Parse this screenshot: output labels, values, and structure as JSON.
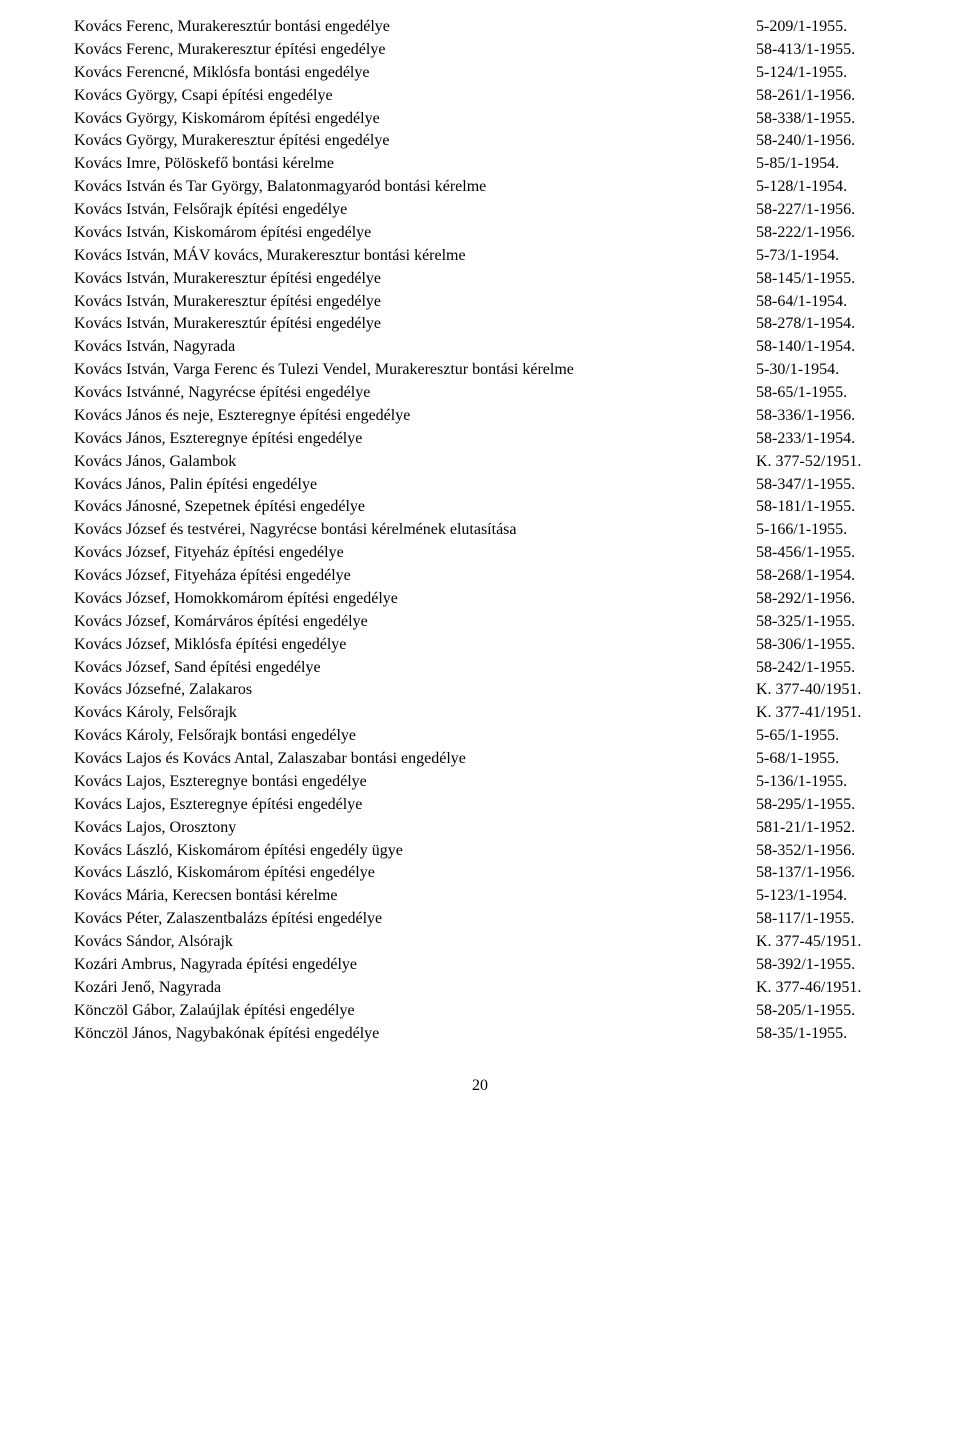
{
  "page_number": "20",
  "entries": [
    {
      "text": "Kovács Ferenc, Murakeresztúr bontási engedélye",
      "code": "5-209/1-1955."
    },
    {
      "text": "Kovács Ferenc, Murakeresztur építési engedélye",
      "code": "58-413/1-1955."
    },
    {
      "text": "Kovács Ferencné, Miklósfa bontási engedélye",
      "code": "5-124/1-1955."
    },
    {
      "text": "Kovács György, Csapi építési engedélye",
      "code": "58-261/1-1956."
    },
    {
      "text": "Kovács György, Kiskomárom építési engedélye",
      "code": "58-338/1-1955."
    },
    {
      "text": "Kovács György, Murakeresztur építési engedélye",
      "code": "58-240/1-1956."
    },
    {
      "text": "Kovács Imre, Pölöskefő bontási kérelme",
      "code": "5-85/1-1954."
    },
    {
      "text": "Kovács István és Tar György, Balatonmagyaród bontási kérelme",
      "code": "5-128/1-1954."
    },
    {
      "text": "Kovács István, Felsőrajk építési engedélye",
      "code": "58-227/1-1956."
    },
    {
      "text": "Kovács István, Kiskomárom építési engedélye",
      "code": "58-222/1-1956."
    },
    {
      "text": "Kovács István, MÁV kovács, Murakeresztur bontási kérelme",
      "code": "5-73/1-1954."
    },
    {
      "text": "Kovács István, Murakeresztur építési engedélye",
      "code": "58-145/1-1955."
    },
    {
      "text": "Kovács István, Murakeresztur építési engedélye",
      "code": "58-64/1-1954."
    },
    {
      "text": "Kovács István, Murakeresztúr építési engedélye",
      "code": "58-278/1-1954."
    },
    {
      "text": "Kovács István, Nagyrada",
      "code": "58-140/1-1954."
    },
    {
      "text": "Kovács István, Varga Ferenc és Tulezi Vendel, Murakeresztur bontási kérelme",
      "code": "5-30/1-1954."
    },
    {
      "text": "Kovács Istvánné, Nagyrécse építési engedélye",
      "code": "58-65/1-1955."
    },
    {
      "text": "Kovács János és neje, Eszteregnye építési engedélye",
      "code": "58-336/1-1956."
    },
    {
      "text": "Kovács János, Eszteregnye építési engedélye",
      "code": "58-233/1-1954."
    },
    {
      "text": "Kovács János, Galambok",
      "code": "K. 377-52/1951."
    },
    {
      "text": "Kovács János, Palin építési engedélye",
      "code": "58-347/1-1955."
    },
    {
      "text": "Kovács Jánosné, Szepetnek építési engedélye",
      "code": "58-181/1-1955."
    },
    {
      "text": "Kovács József és testvérei, Nagyrécse bontási kérelmének elutasítása",
      "code": "5-166/1-1955."
    },
    {
      "text": "Kovács József, Fityeház építési engedélye",
      "code": "58-456/1-1955."
    },
    {
      "text": "Kovács József, Fityeháza építési engedélye",
      "code": "58-268/1-1954."
    },
    {
      "text": "Kovács József, Homokkomárom építési engedélye",
      "code": "58-292/1-1956."
    },
    {
      "text": "Kovács József, Komárváros építési engedélye",
      "code": "58-325/1-1955."
    },
    {
      "text": "Kovács József, Miklósfa építési engedélye",
      "code": "58-306/1-1955."
    },
    {
      "text": "Kovács József, Sand építési engedélye",
      "code": "58-242/1-1955."
    },
    {
      "text": "Kovács Józsefné, Zalakaros",
      "code": "K. 377-40/1951."
    },
    {
      "text": "Kovács Károly, Felsőrajk",
      "code": "K. 377-41/1951."
    },
    {
      "text": "Kovács Károly, Felsőrajk bontási engedélye",
      "code": "5-65/1-1955."
    },
    {
      "text": "Kovács Lajos és Kovács Antal, Zalaszabar bontási engedélye",
      "code": "5-68/1-1955."
    },
    {
      "text": "Kovács Lajos, Eszteregnye bontási engedélye",
      "code": "5-136/1-1955."
    },
    {
      "text": "Kovács Lajos, Eszteregnye építési engedélye",
      "code": "58-295/1-1955."
    },
    {
      "text": "Kovács Lajos, Orosztony",
      "code": "581-21/1-1952."
    },
    {
      "text": "Kovács László, Kiskomárom építési engedély ügye",
      "code": "58-352/1-1956."
    },
    {
      "text": "Kovács László, Kiskomárom építési engedélye",
      "code": "58-137/1-1956."
    },
    {
      "text": "Kovács Mária, Kerecsen bontási kérelme",
      "code": "5-123/1-1954."
    },
    {
      "text": "Kovács Péter, Zalaszentbalázs építési engedélye",
      "code": "58-117/1-1955."
    },
    {
      "text": "Kovács Sándor, Alsórajk",
      "code": "K. 377-45/1951."
    },
    {
      "text": "Kozári Ambrus, Nagyrada építési engedélye",
      "code": "58-392/1-1955."
    },
    {
      "text": "Kozári Jenő, Nagyrada",
      "code": "K. 377-46/1951."
    },
    {
      "text": "Könczöl Gábor, Zalaújlak építési engedélye",
      "code": "58-205/1-1955."
    },
    {
      "text": "Könczöl János, Nagybakónak építési engedélye",
      "code": "58-35/1-1955."
    }
  ]
}
